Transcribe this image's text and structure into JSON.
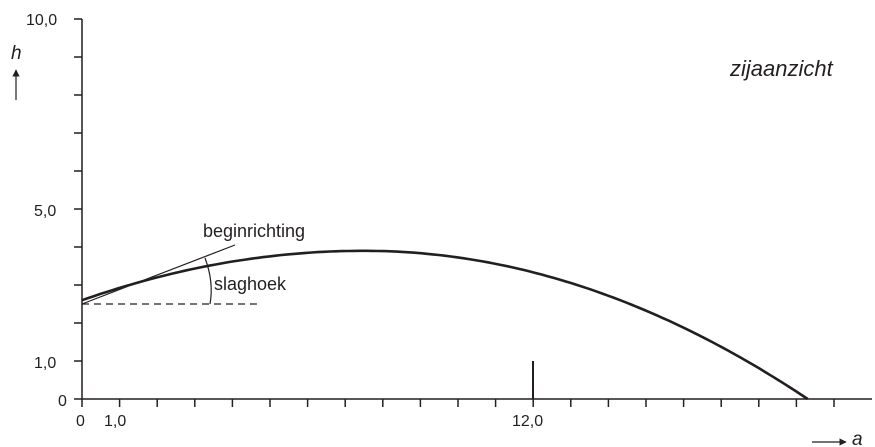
{
  "title": "zijaanzicht",
  "axes": {
    "x_label": "a",
    "y_label": "h",
    "x_tick_labels": {
      "zero": "0",
      "one": "1,0",
      "twelve": "12,0"
    },
    "y_tick_labels": {
      "zero": "0",
      "one": "1,0",
      "five": "5,0",
      "ten": "10,0"
    },
    "x_range": [
      0,
      20
    ],
    "y_range": [
      0,
      10
    ]
  },
  "annotations": {
    "start_direction": "beginrichting",
    "launch_angle": "slaghoek"
  },
  "trajectory": {
    "start_height": 2.6,
    "max_height": 3.9,
    "x_at_max": 7.5,
    "landing_x": 19.3
  },
  "marker_x": 12.0,
  "colors": {
    "ink": "#231f20"
  }
}
